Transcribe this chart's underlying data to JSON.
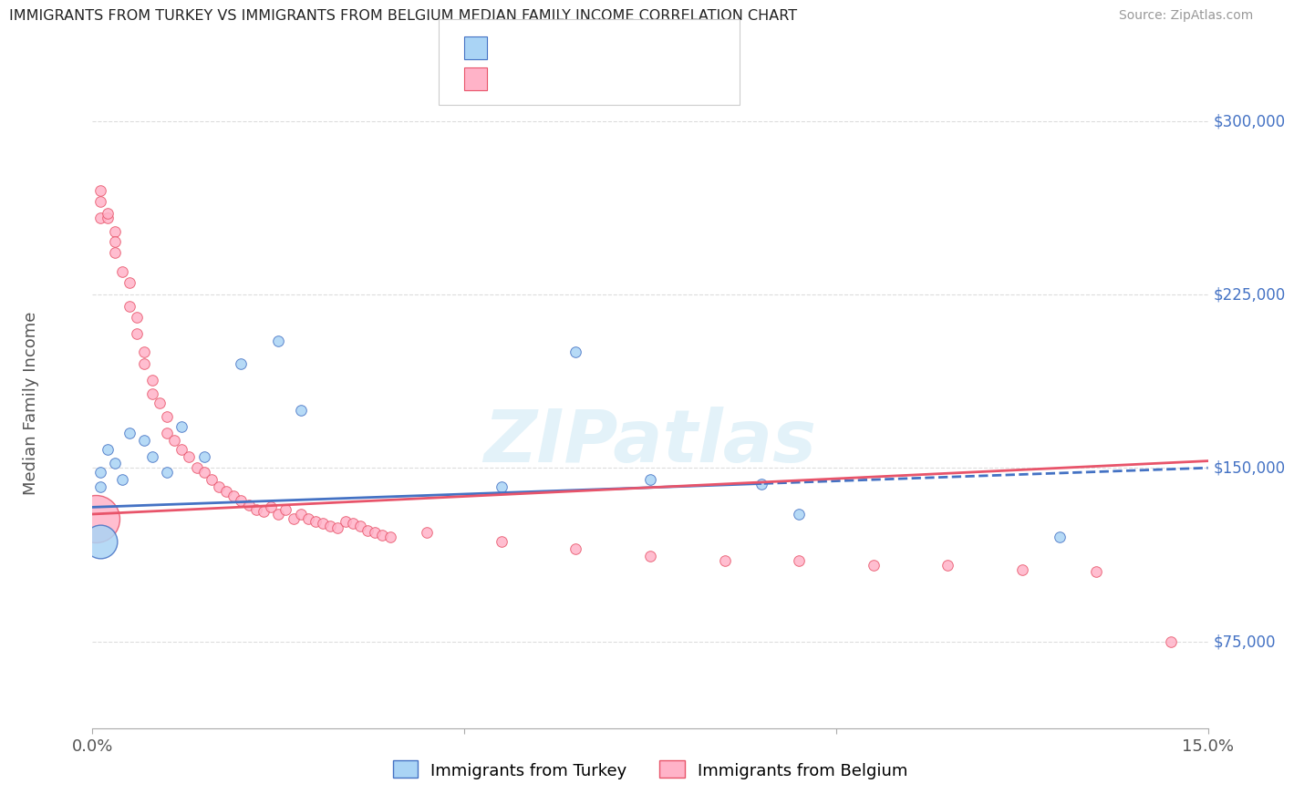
{
  "title": "IMMIGRANTS FROM TURKEY VS IMMIGRANTS FROM BELGIUM MEDIAN FAMILY INCOME CORRELATION CHART",
  "source": "Source: ZipAtlas.com",
  "ylabel": "Median Family Income",
  "xlim": [
    0.0,
    0.15
  ],
  "ylim": [
    37500,
    318750
  ],
  "yticks": [
    75000,
    150000,
    225000,
    300000
  ],
  "ytick_labels": [
    "$75,000",
    "$150,000",
    "$225,000",
    "$300,000"
  ],
  "color_turkey": "#aad4f5",
  "color_belgium": "#ffb3c8",
  "trend_color_turkey": "#4472c4",
  "trend_color_belgium": "#e8546a",
  "turkey_x": [
    0.001,
    0.001,
    0.002,
    0.003,
    0.004,
    0.005,
    0.007,
    0.008,
    0.01,
    0.012,
    0.015,
    0.02,
    0.025,
    0.028,
    0.055,
    0.065,
    0.075,
    0.09,
    0.095,
    0.13
  ],
  "turkey_y": [
    148000,
    142000,
    158000,
    152000,
    145000,
    165000,
    162000,
    155000,
    148000,
    168000,
    155000,
    195000,
    205000,
    175000,
    142000,
    200000,
    145000,
    143000,
    130000,
    120000
  ],
  "turkey_large_x": [
    0.001
  ],
  "turkey_large_y": [
    118000
  ],
  "turkey_large_size": [
    700
  ],
  "belgium_x": [
    0.001,
    0.001,
    0.001,
    0.002,
    0.002,
    0.003,
    0.003,
    0.003,
    0.004,
    0.005,
    0.005,
    0.006,
    0.006,
    0.007,
    0.007,
    0.008,
    0.008,
    0.009,
    0.01,
    0.01,
    0.011,
    0.012,
    0.013,
    0.014,
    0.015,
    0.016,
    0.017,
    0.018,
    0.019,
    0.02,
    0.021,
    0.022,
    0.023,
    0.024,
    0.025,
    0.026,
    0.027,
    0.028,
    0.029,
    0.03,
    0.031,
    0.032,
    0.033,
    0.034,
    0.035,
    0.036,
    0.037,
    0.038,
    0.039,
    0.04,
    0.045,
    0.055,
    0.065,
    0.075,
    0.085,
    0.095,
    0.105,
    0.115,
    0.125,
    0.135,
    0.145
  ],
  "belgium_y": [
    265000,
    270000,
    258000,
    258000,
    260000,
    252000,
    248000,
    243000,
    235000,
    230000,
    220000,
    215000,
    208000,
    200000,
    195000,
    188000,
    182000,
    178000,
    172000,
    165000,
    162000,
    158000,
    155000,
    150000,
    148000,
    145000,
    142000,
    140000,
    138000,
    136000,
    134000,
    132000,
    131000,
    133000,
    130000,
    132000,
    128000,
    130000,
    128000,
    127000,
    126000,
    125000,
    124000,
    127000,
    126000,
    125000,
    123000,
    122000,
    121000,
    120000,
    122000,
    118000,
    115000,
    112000,
    110000,
    110000,
    108000,
    108000,
    106000,
    105000,
    75000
  ],
  "belgium_large_x": [
    0.0005
  ],
  "belgium_large_y": [
    128000
  ],
  "belgium_large_size": [
    1400
  ]
}
